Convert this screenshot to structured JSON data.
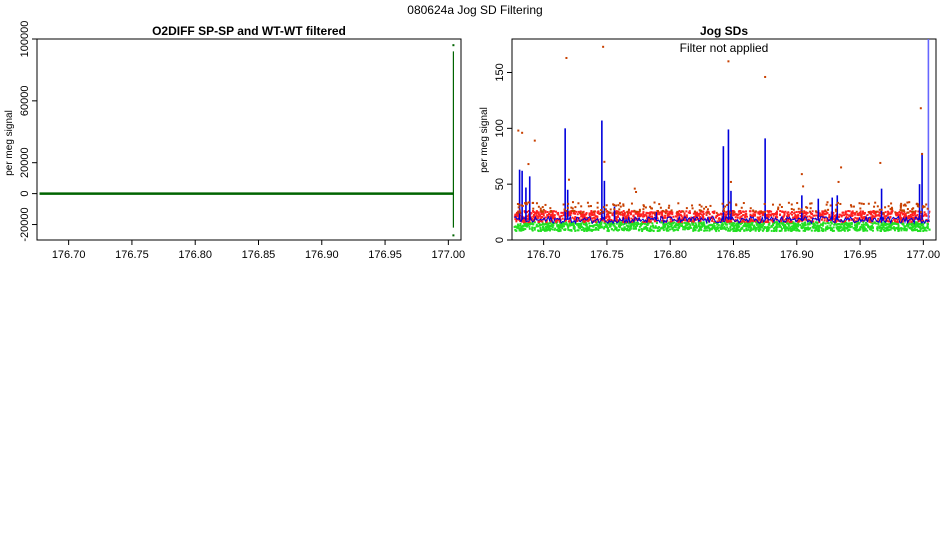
{
  "figure": {
    "title": "080624a   Jog SD Filtering"
  },
  "chart_data": [
    {
      "type": "scatter",
      "title": "O2DIFF SP-SP and WT-WT filtered",
      "xlabel": "",
      "ylabel": "per meg signal",
      "xlim": [
        176.675,
        177.01
      ],
      "ylim": [
        -30000,
        100000
      ],
      "xticks": [
        "176.70",
        "176.75",
        "176.80",
        "176.85",
        "176.90",
        "176.95",
        "177.00"
      ],
      "yticks": [
        "-20000",
        "0",
        "20000",
        "60000",
        "100000"
      ],
      "grid": false,
      "series": [
        {
          "color": "#006400",
          "x_range": [
            176.677,
            177.004
          ],
          "baseline": 0,
          "spikes": [
            {
              "x": 177.004,
              "y_min": -22000,
              "y_max": 92000
            }
          ],
          "outliers": [
            {
              "x": 177.004,
              "y": 96000
            },
            {
              "x": 177.004,
              "y": -27000
            }
          ]
        }
      ]
    },
    {
      "type": "scatter",
      "title": "Jog SDs",
      "subtitle": "Filter not applied",
      "xlabel": "",
      "ylabel": "per meg signal",
      "xlim": [
        176.675,
        177.01
      ],
      "ylim": [
        0,
        180
      ],
      "xticks": [
        "176.70",
        "176.75",
        "176.80",
        "176.85",
        "176.90",
        "176.95",
        "177.00"
      ],
      "yticks": [
        "0",
        "50",
        "100",
        "150"
      ],
      "grid": false,
      "series": [
        {
          "color": "#22e022",
          "band": [
            8,
            16
          ]
        },
        {
          "color": "#ff2020",
          "band": [
            16,
            26
          ]
        },
        {
          "color": "#0000dd",
          "baseline": 18,
          "spikes": [
            {
              "x": 176.681,
              "y": 63
            },
            {
              "x": 176.683,
              "y": 62
            },
            {
              "x": 176.686,
              "y": 47
            },
            {
              "x": 176.689,
              "y": 57
            },
            {
              "x": 176.717,
              "y": 100
            },
            {
              "x": 176.719,
              "y": 45
            },
            {
              "x": 176.746,
              "y": 107
            },
            {
              "x": 176.748,
              "y": 53
            },
            {
              "x": 176.756,
              "y": 30
            },
            {
              "x": 176.789,
              "y": 25
            },
            {
              "x": 176.842,
              "y": 84
            },
            {
              "x": 176.846,
              "y": 99
            },
            {
              "x": 176.848,
              "y": 44
            },
            {
              "x": 176.875,
              "y": 91
            },
            {
              "x": 176.904,
              "y": 40
            },
            {
              "x": 176.917,
              "y": 37
            },
            {
              "x": 176.928,
              "y": 38
            },
            {
              "x": 176.932,
              "y": 40
            },
            {
              "x": 176.967,
              "y": 46
            },
            {
              "x": 176.997,
              "y": 50
            },
            {
              "x": 176.999,
              "y": 78
            },
            {
              "x": 177.004,
              "y": 180
            }
          ]
        },
        {
          "color": "#c84000",
          "outliers": [
            {
              "x": 176.68,
              "y": 98
            },
            {
              "x": 176.683,
              "y": 96
            },
            {
              "x": 176.688,
              "y": 68
            },
            {
              "x": 176.693,
              "y": 89
            },
            {
              "x": 176.718,
              "y": 163
            },
            {
              "x": 176.72,
              "y": 54
            },
            {
              "x": 176.747,
              "y": 173
            },
            {
              "x": 176.748,
              "y": 70
            },
            {
              "x": 176.772,
              "y": 46
            },
            {
              "x": 176.773,
              "y": 43
            },
            {
              "x": 176.846,
              "y": 160
            },
            {
              "x": 176.848,
              "y": 52
            },
            {
              "x": 176.875,
              "y": 146
            },
            {
              "x": 176.904,
              "y": 59
            },
            {
              "x": 176.935,
              "y": 65
            },
            {
              "x": 176.933,
              "y": 52
            },
            {
              "x": 176.966,
              "y": 69
            },
            {
              "x": 176.998,
              "y": 118
            },
            {
              "x": 176.999,
              "y": 77
            },
            {
              "x": 176.905,
              "y": 48
            }
          ]
        }
      ]
    }
  ]
}
